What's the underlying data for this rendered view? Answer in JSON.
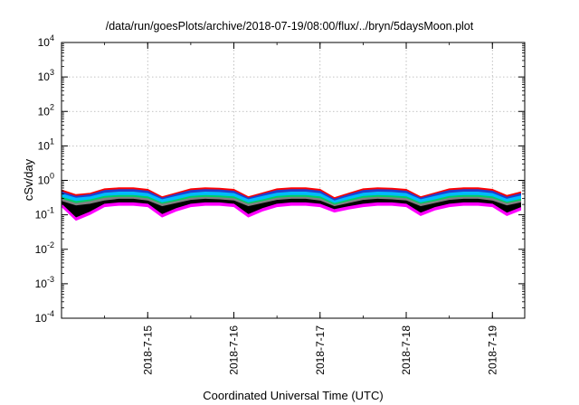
{
  "chart_data": {
    "type": "area",
    "title": "/data/run/goesPlots/archive/2018-07-19/08:00/flux/../bryn/5daysMoon.plot",
    "xlabel": "Coordinated Universal Time (UTC)",
    "ylabel": "cSv/day",
    "yscale": "log",
    "ylim": [
      0.0001,
      10000
    ],
    "xlim": [
      "2018-07-14 00:00",
      "2018-07-19 09:00"
    ],
    "grid": true,
    "y_ticks": [
      {
        "base": "10",
        "exp": "4"
      },
      {
        "base": "10",
        "exp": "3"
      },
      {
        "base": "10",
        "exp": "2"
      },
      {
        "base": "10",
        "exp": "1"
      },
      {
        "base": "10",
        "exp": "0"
      },
      {
        "base": "10",
        "exp": "-1"
      },
      {
        "base": "10",
        "exp": "-2"
      },
      {
        "base": "10",
        "exp": "-3"
      },
      {
        "base": "10",
        "exp": "-4"
      }
    ],
    "x_ticks": [
      "2018-7-15",
      "2018-7-16",
      "2018-7-17",
      "2018-7-18",
      "2018-7-19"
    ],
    "x": [
      "2018-07-14 00:00",
      "2018-07-14 04:00",
      "2018-07-14 08:00",
      "2018-07-14 12:00",
      "2018-07-14 16:00",
      "2018-07-14 20:00",
      "2018-07-15 00:00",
      "2018-07-15 04:00",
      "2018-07-15 08:00",
      "2018-07-15 12:00",
      "2018-07-15 16:00",
      "2018-07-15 20:00",
      "2018-07-16 00:00",
      "2018-07-16 04:00",
      "2018-07-16 08:00",
      "2018-07-16 12:00",
      "2018-07-16 16:00",
      "2018-07-16 20:00",
      "2018-07-17 00:00",
      "2018-07-17 04:00",
      "2018-07-17 08:00",
      "2018-07-17 12:00",
      "2018-07-17 16:00",
      "2018-07-17 20:00",
      "2018-07-18 00:00",
      "2018-07-18 04:00",
      "2018-07-18 08:00",
      "2018-07-18 12:00",
      "2018-07-18 16:00",
      "2018-07-18 20:00",
      "2018-07-19 00:00",
      "2018-07-19 04:00",
      "2018-07-19 08:00"
    ],
    "series": [
      {
        "color": "#ff00ff",
        "values": [
          0.2,
          0.08,
          0.12,
          0.2,
          0.22,
          0.22,
          0.2,
          0.1,
          0.15,
          0.2,
          0.22,
          0.22,
          0.2,
          0.1,
          0.15,
          0.2,
          0.22,
          0.22,
          0.2,
          0.14,
          0.17,
          0.2,
          0.22,
          0.22,
          0.2,
          0.11,
          0.16,
          0.2,
          0.22,
          0.22,
          0.2,
          0.11,
          0.16
        ]
      },
      {
        "color": "#000000",
        "values": [
          0.24,
          0.18,
          0.2,
          0.25,
          0.28,
          0.28,
          0.25,
          0.17,
          0.21,
          0.26,
          0.28,
          0.27,
          0.25,
          0.17,
          0.21,
          0.26,
          0.28,
          0.28,
          0.25,
          0.17,
          0.21,
          0.26,
          0.28,
          0.27,
          0.25,
          0.17,
          0.21,
          0.26,
          0.28,
          0.28,
          0.25,
          0.18,
          0.22
        ]
      },
      {
        "color": "#808080",
        "values": [
          0.28,
          0.21,
          0.24,
          0.3,
          0.32,
          0.32,
          0.29,
          0.2,
          0.24,
          0.3,
          0.32,
          0.31,
          0.29,
          0.2,
          0.24,
          0.3,
          0.32,
          0.32,
          0.29,
          0.19,
          0.24,
          0.3,
          0.32,
          0.31,
          0.29,
          0.2,
          0.24,
          0.3,
          0.32,
          0.32,
          0.29,
          0.21,
          0.25
        ]
      },
      {
        "color": "#00cc66",
        "values": [
          0.32,
          0.24,
          0.27,
          0.34,
          0.36,
          0.36,
          0.33,
          0.22,
          0.27,
          0.34,
          0.36,
          0.35,
          0.33,
          0.22,
          0.27,
          0.34,
          0.36,
          0.36,
          0.33,
          0.21,
          0.27,
          0.34,
          0.36,
          0.35,
          0.33,
          0.22,
          0.27,
          0.34,
          0.36,
          0.36,
          0.33,
          0.23,
          0.28
        ]
      },
      {
        "color": "#00bbff",
        "values": [
          0.4,
          0.3,
          0.33,
          0.42,
          0.45,
          0.45,
          0.41,
          0.27,
          0.34,
          0.42,
          0.45,
          0.44,
          0.41,
          0.27,
          0.34,
          0.42,
          0.45,
          0.45,
          0.41,
          0.25,
          0.33,
          0.42,
          0.45,
          0.44,
          0.41,
          0.27,
          0.34,
          0.42,
          0.45,
          0.45,
          0.41,
          0.28,
          0.35
        ]
      },
      {
        "color": "#1f3fd0",
        "values": [
          0.46,
          0.34,
          0.38,
          0.5,
          0.53,
          0.53,
          0.48,
          0.3,
          0.39,
          0.5,
          0.53,
          0.52,
          0.48,
          0.3,
          0.39,
          0.5,
          0.53,
          0.53,
          0.48,
          0.28,
          0.38,
          0.5,
          0.53,
          0.52,
          0.48,
          0.3,
          0.39,
          0.5,
          0.53,
          0.53,
          0.48,
          0.32,
          0.41
        ]
      },
      {
        "color": "#ff0000",
        "values": [
          0.52,
          0.38,
          0.42,
          0.56,
          0.6,
          0.6,
          0.54,
          0.33,
          0.43,
          0.56,
          0.6,
          0.58,
          0.54,
          0.33,
          0.43,
          0.56,
          0.6,
          0.6,
          0.54,
          0.31,
          0.42,
          0.56,
          0.6,
          0.58,
          0.54,
          0.33,
          0.43,
          0.56,
          0.6,
          0.6,
          0.54,
          0.36,
          0.46
        ]
      }
    ]
  }
}
